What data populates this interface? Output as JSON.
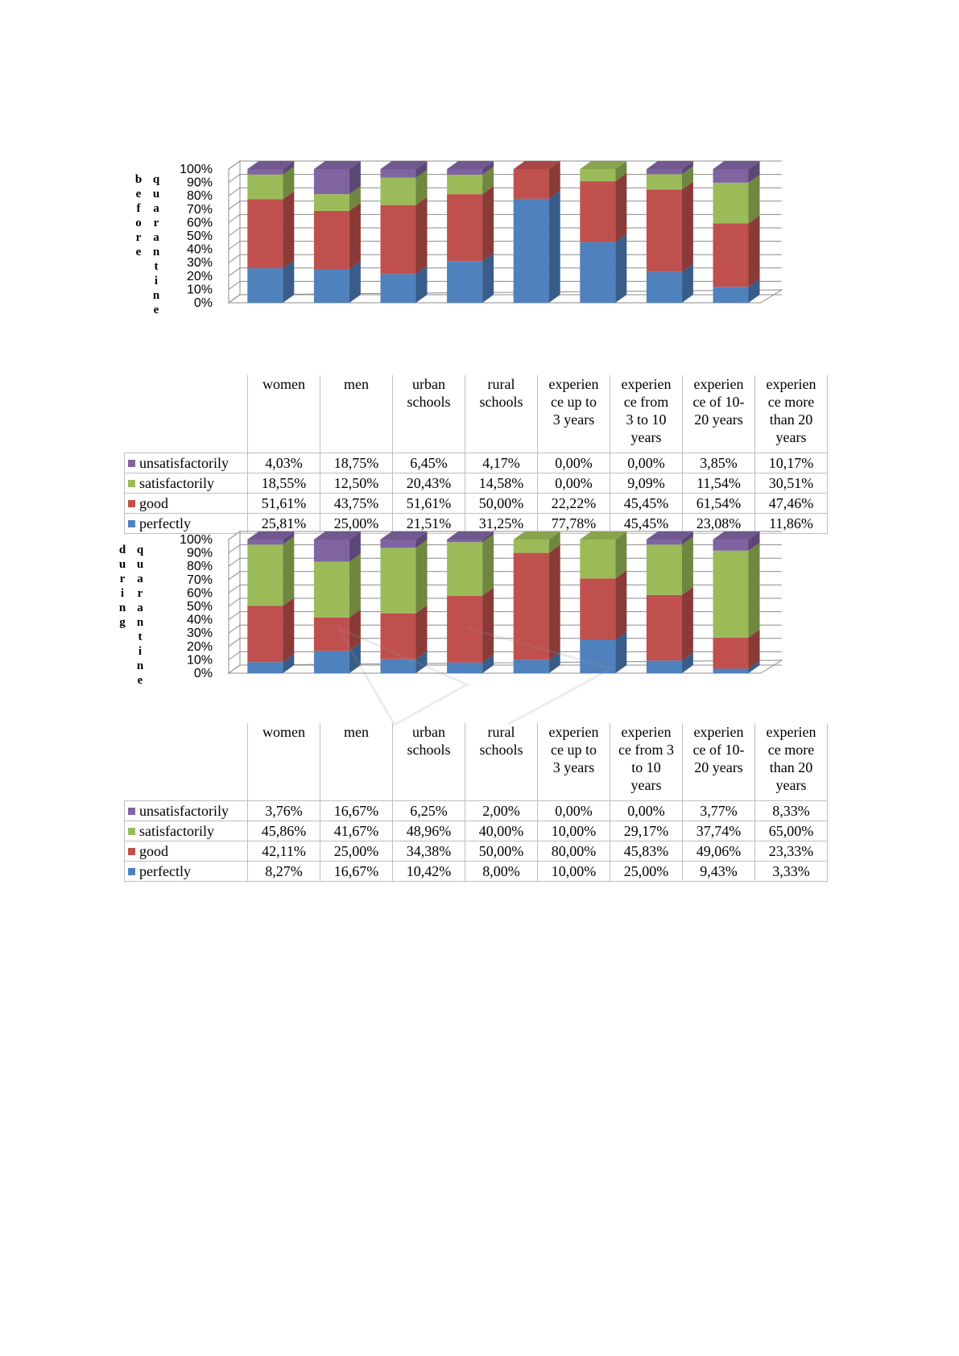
{
  "colors": {
    "perfectly": "#4f81bd",
    "good": "#c0504d",
    "satisfactorily": "#9bbb59",
    "unsatisfactorily": "#8064a2"
  },
  "chart_data": [
    {
      "type": "bar",
      "stacked": true,
      "three_d": true,
      "title_vertical": [
        "before",
        "quarantine"
      ],
      "categories": [
        "women",
        "men",
        "urban schools",
        "rural schools",
        "experien ce up to 3 years",
        "experien ce from 3 to 10 years",
        "experien ce of 10- 20 years",
        "experien ce more than 20 years"
      ],
      "category_lines": [
        [
          "women"
        ],
        [
          "men"
        ],
        [
          "urban",
          "schools"
        ],
        [
          "rural",
          "schools"
        ],
        [
          "experien",
          "ce up to",
          "3 years"
        ],
        [
          "experien",
          "ce from",
          "3 to 10",
          "years"
        ],
        [
          "experien",
          "ce of 10-",
          "20 years"
        ],
        [
          "experien",
          "ce more",
          "than 20",
          "years"
        ]
      ],
      "yticks": [
        "0%",
        "10%",
        "20%",
        "30%",
        "40%",
        "50%",
        "60%",
        "70%",
        "80%",
        "90%",
        "100%"
      ],
      "ylim": [
        0,
        100
      ],
      "series": [
        {
          "name": "perfectly",
          "values": [
            25.81,
            25.0,
            21.51,
            31.25,
            77.78,
            45.45,
            23.08,
            11.86
          ]
        },
        {
          "name": "good",
          "values": [
            51.61,
            43.75,
            51.61,
            50.0,
            22.22,
            45.45,
            61.54,
            47.46
          ]
        },
        {
          "name": "satisfactorily",
          "values": [
            18.55,
            12.5,
            20.43,
            14.58,
            0.0,
            9.09,
            11.54,
            30.51
          ]
        },
        {
          "name": "unsatisfactorily",
          "values": [
            4.03,
            18.75,
            6.45,
            4.17,
            0.0,
            0.0,
            3.85,
            10.17
          ]
        }
      ],
      "table": [
        {
          "name": "unsatisfactorily",
          "cells": [
            "4,03%",
            "18,75%",
            "6,45%",
            "4,17%",
            "0,00%",
            "0,00%",
            "3,85%",
            "10,17%"
          ]
        },
        {
          "name": "satisfactorily",
          "cells": [
            "18,55%",
            "12,50%",
            "20,43%",
            "14,58%",
            "0,00%",
            "9,09%",
            "11,54%",
            "30,51%"
          ]
        },
        {
          "name": "good",
          "cells": [
            "51,61%",
            "43,75%",
            "51,61%",
            "50,00%",
            "22,22%",
            "45,45%",
            "61,54%",
            "47,46%"
          ]
        },
        {
          "name": "perfectly",
          "cells": [
            "25,81%",
            "25,00%",
            "21,51%",
            "31,25%",
            "77,78%",
            "45,45%",
            "23,08%",
            "11,86%"
          ]
        }
      ]
    },
    {
      "type": "bar",
      "stacked": true,
      "three_d": true,
      "title_vertical": [
        "during",
        "quarantine"
      ],
      "categories": [
        "women",
        "men",
        "urban schools",
        "rural schools",
        "experien ce up to 3 years",
        "experien ce from 3 to 10 years",
        "experien ce of 10- 20 years",
        "experien ce more than 20 years"
      ],
      "category_lines": [
        [
          "women"
        ],
        [
          "men"
        ],
        [
          "urban",
          "schools"
        ],
        [
          "rural",
          "schools"
        ],
        [
          "experien",
          "ce up to",
          "3 years"
        ],
        [
          "experien",
          "ce from 3",
          "to 10",
          "years"
        ],
        [
          "experien",
          "ce of 10-",
          "20 years"
        ],
        [
          "experien",
          "ce more",
          "than 20",
          "years"
        ]
      ],
      "yticks": [
        "0%",
        "10%",
        "20%",
        "30%",
        "40%",
        "50%",
        "60%",
        "70%",
        "80%",
        "90%",
        "100%"
      ],
      "ylim": [
        0,
        100
      ],
      "series": [
        {
          "name": "perfectly",
          "values": [
            8.27,
            16.67,
            10.42,
            8.0,
            10.0,
            25.0,
            9.43,
            3.33
          ]
        },
        {
          "name": "good",
          "values": [
            42.11,
            25.0,
            34.38,
            50.0,
            80.0,
            45.83,
            49.06,
            23.33
          ]
        },
        {
          "name": "satisfactorily",
          "values": [
            45.86,
            41.67,
            48.96,
            40.0,
            10.0,
            29.17,
            37.74,
            65.0
          ]
        },
        {
          "name": "unsatisfactorily",
          "values": [
            3.76,
            16.67,
            6.25,
            2.0,
            0.0,
            0.0,
            3.77,
            8.33
          ]
        }
      ],
      "table": [
        {
          "name": "unsatisfactorily",
          "cells": [
            "3,76%",
            "16,67%",
            "6,25%",
            "2,00%",
            "0,00%",
            "0,00%",
            "3,77%",
            "8,33%"
          ]
        },
        {
          "name": "satisfactorily",
          "cells": [
            "45,86%",
            "41,67%",
            "48,96%",
            "40,00%",
            "10,00%",
            "29,17%",
            "37,74%",
            "65,00%"
          ]
        },
        {
          "name": "good",
          "cells": [
            "42,11%",
            "25,00%",
            "34,38%",
            "50,00%",
            "80,00%",
            "45,83%",
            "49,06%",
            "23,33%"
          ]
        },
        {
          "name": "perfectly",
          "cells": [
            "8,27%",
            "16,67%",
            "10,42%",
            "8,00%",
            "10,00%",
            "25,00%",
            "9,43%",
            "3,33%"
          ]
        }
      ]
    }
  ]
}
